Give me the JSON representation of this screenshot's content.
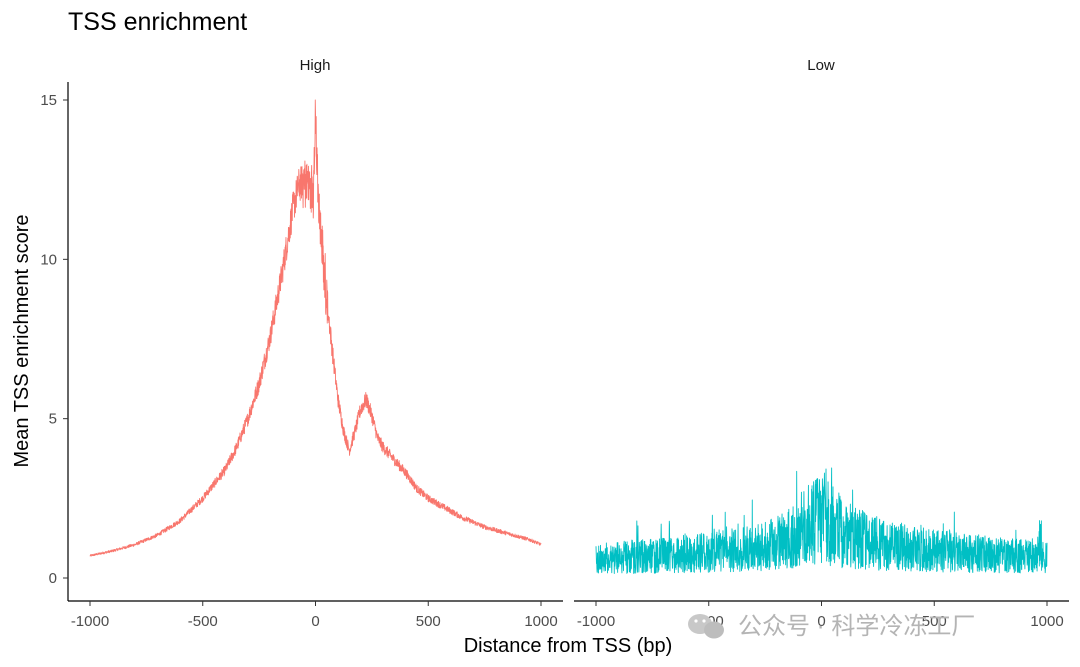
{
  "chart_data": {
    "type": "line",
    "title": "TSS enrichment",
    "xlabel": "Distance from TSS (bp)",
    "ylabel": "Mean TSS enrichment score",
    "xlim": [
      -1000,
      1000
    ],
    "ylim": [
      0,
      15
    ],
    "x_ticks": [
      -1000,
      -500,
      0,
      500,
      1000
    ],
    "x_tick_labels": [
      "-1000",
      "-500",
      "0",
      "500",
      "1000"
    ],
    "y_ticks": [
      0,
      5,
      10,
      15
    ],
    "y_tick_labels": [
      "0",
      "5",
      "10",
      "15"
    ],
    "grid": false,
    "legend": "none",
    "facets": [
      {
        "label": "High",
        "color": "#F8766D",
        "series": [
          {
            "x": [
              -1000,
              -900,
              -800,
              -700,
              -600,
              -500,
              -400,
              -350,
              -300,
              -250,
              -200,
              -150,
              -100,
              -75,
              -50,
              -25,
              -10,
              0,
              10,
              25,
              50,
              75,
              100,
              125,
              150,
              175,
              200,
              225,
              250,
              275,
              300,
              350,
              400,
              450,
              500,
              550,
              600,
              650,
              700,
              750,
              800,
              850,
              900,
              950,
              1000
            ],
            "values": [
              0.7,
              0.85,
              1.05,
              1.35,
              1.8,
              2.5,
              3.4,
              4.1,
              5.0,
              6.1,
              7.6,
              9.5,
              11.6,
              12.3,
              12.5,
              12.3,
              12.0,
              14.7,
              12.1,
              10.6,
              8.8,
              7.1,
              5.6,
              4.6,
              4.0,
              4.6,
              5.3,
              5.6,
              5.1,
              4.4,
              4.1,
              3.7,
              3.3,
              2.8,
              2.5,
              2.3,
              2.1,
              1.9,
              1.75,
              1.6,
              1.5,
              1.4,
              1.3,
              1.2,
              1.05
            ]
          }
        ]
      },
      {
        "label": "Low",
        "color": "#00BFC4",
        "series": [
          {
            "x": [
              -1000,
              -900,
              -800,
              -700,
              -600,
              -500,
              -400,
              -300,
              -200,
              -100,
              -50,
              0,
              50,
              100,
              200,
              300,
              400,
              500,
              600,
              700,
              800,
              900,
              1000
            ],
            "values": [
              0.55,
              0.6,
              0.62,
              0.65,
              0.7,
              0.75,
              0.8,
              0.85,
              1.0,
              1.3,
              1.55,
              1.65,
              1.5,
              1.3,
              1.05,
              0.95,
              0.85,
              0.8,
              0.75,
              0.7,
              0.65,
              0.62,
              0.6
            ]
          }
        ]
      }
    ]
  },
  "watermark": "公众号 · 科学冷冻工厂"
}
